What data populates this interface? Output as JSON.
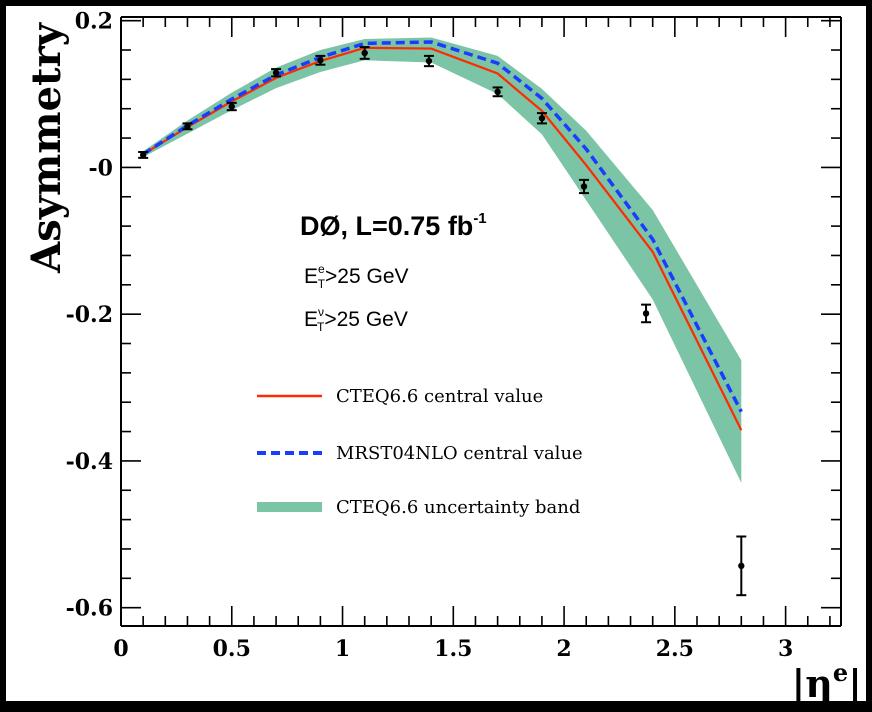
{
  "chart_data": {
    "type": "line",
    "ylabel": "Asymmetry",
    "xlabel": "|η",
    "xlabel_sup": "e",
    "xlabel_end": "|",
    "xlim": [
      0,
      3.25
    ],
    "ylim": [
      -0.625,
      0.205
    ],
    "x_ticks": [
      {
        "v": 0,
        "label": "0"
      },
      {
        "v": 0.5,
        "label": "0.5"
      },
      {
        "v": 1,
        "label": "1"
      },
      {
        "v": 1.5,
        "label": "1.5"
      },
      {
        "v": 2,
        "label": "2"
      },
      {
        "v": 2.5,
        "label": "2.5"
      },
      {
        "v": 3,
        "label": "3"
      }
    ],
    "y_ticks": [
      {
        "v": 0.2,
        "label": "0.2"
      },
      {
        "v": 0,
        "label": "-0"
      },
      {
        "v": -0.2,
        "label": "-0.2"
      },
      {
        "v": -0.4,
        "label": "-0.4"
      },
      {
        "v": -0.6,
        "label": "-0.6"
      }
    ],
    "annotations": {
      "experiment": "DØ, L=0.75 fb",
      "experiment_sup": "-1",
      "cut1_main": "E",
      "cut1_sub": "T",
      "cut1_sup": "e",
      "cut1_rest": ">25 GeV",
      "cut2_main": "E",
      "cut2_sub": "T",
      "cut2_sup": "ν",
      "cut2_rest": ">25 GeV"
    },
    "legend": [
      {
        "name": "CTEQ6.6 central value",
        "style": "solid-red"
      },
      {
        "name": "MRST04NLO central value",
        "style": "dashed-blue"
      },
      {
        "name": "CTEQ6.6 uncertainty band",
        "style": "band-green"
      }
    ],
    "data_points": {
      "x": [
        0.1,
        0.3,
        0.5,
        0.7,
        0.9,
        1.1,
        1.39,
        1.7,
        1.9,
        2.09,
        2.37,
        2.8
      ],
      "y": [
        0.017,
        0.056,
        0.083,
        0.129,
        0.146,
        0.156,
        0.145,
        0.103,
        0.067,
        -0.026,
        -0.199,
        -0.543
      ],
      "yerr": [
        0.004,
        0.004,
        0.005,
        0.005,
        0.006,
        0.008,
        0.007,
        0.006,
        0.007,
        0.009,
        0.012,
        0.04
      ]
    },
    "cteq_central": {
      "x": [
        0.1,
        0.3,
        0.5,
        0.7,
        0.9,
        1.1,
        1.4,
        1.7,
        1.9,
        2.1,
        2.4,
        2.8
      ],
      "y": [
        0.018,
        0.055,
        0.09,
        0.122,
        0.145,
        0.163,
        0.162,
        0.128,
        0.077,
        0.003,
        -0.115,
        -0.358
      ]
    },
    "mrst_central": {
      "x": [
        0.1,
        0.3,
        0.5,
        0.7,
        0.9,
        1.1,
        1.4,
        1.7,
        1.9,
        2.1,
        2.4,
        2.8
      ],
      "y": [
        0.018,
        0.057,
        0.093,
        0.126,
        0.15,
        0.169,
        0.171,
        0.142,
        0.094,
        0.025,
        -0.098,
        -0.333
      ]
    },
    "band_upper": {
      "x": [
        0.1,
        0.3,
        0.5,
        0.7,
        0.9,
        1.1,
        1.4,
        1.7,
        1.9,
        2.1,
        2.4,
        2.8
      ],
      "y": [
        0.022,
        0.064,
        0.102,
        0.136,
        0.16,
        0.175,
        0.177,
        0.152,
        0.107,
        0.05,
        -0.058,
        -0.263
      ]
    },
    "band_lower": {
      "x": [
        0.1,
        0.3,
        0.5,
        0.7,
        0.9,
        1.1,
        1.4,
        1.7,
        1.9,
        2.1,
        2.4,
        2.8
      ],
      "y": [
        0.014,
        0.046,
        0.078,
        0.108,
        0.13,
        0.146,
        0.143,
        0.1,
        0.045,
        -0.045,
        -0.18,
        -0.43
      ]
    },
    "colors": {
      "background": "#000000",
      "plot_bg": "#ffffff",
      "cteq": "#ff2a00",
      "mrst": "#1a3cff",
      "band": "#7cc4a6",
      "points": "#000000"
    }
  }
}
